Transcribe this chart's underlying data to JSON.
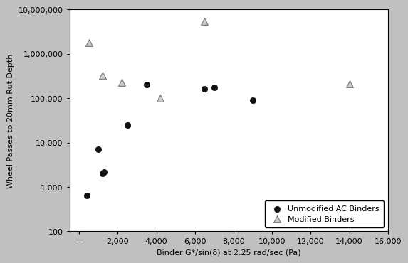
{
  "unmodified_x": [
    400,
    1000,
    1200,
    1300,
    2500,
    3500,
    6500,
    7000,
    9000
  ],
  "unmodified_y": [
    650,
    7000,
    2000,
    2200,
    25000,
    200000,
    160000,
    175000,
    90000
  ],
  "modified_x": [
    500,
    1200,
    2200,
    4200,
    6500,
    14000
  ],
  "modified_y": [
    1800000,
    330000,
    230000,
    100000,
    5500000,
    210000
  ],
  "xlabel": "Binder G*/sin(δ) at 2.25 rad/sec (Pa)",
  "ylabel": "Wheel Passes to 20mm Rut Depth",
  "xlim": [
    -500,
    16000
  ],
  "ylim": [
    100,
    10000000
  ],
  "xticks": [
    0,
    2000,
    4000,
    6000,
    8000,
    10000,
    12000,
    14000,
    16000
  ],
  "xtick_labels": [
    "-",
    "2,000",
    "4,000",
    "6,000",
    "8,000",
    "10,000",
    "12,000",
    "14,000",
    "16,000"
  ],
  "yticks": [
    100,
    1000,
    10000,
    100000,
    1000000,
    10000000
  ],
  "ytick_labels": [
    "100",
    "1,000",
    "10,000",
    "100,000",
    "1,000,000",
    "10,000,000"
  ],
  "legend_unmodified": "Unmodified AC Binders",
  "legend_modified": "Modified Binders",
  "background_color": "#c0c0c0",
  "plot_bg_color": "#ffffff",
  "marker_unmodified": "o",
  "marker_modified": "^",
  "marker_color_unmodified": "#111111",
  "marker_facecolor_modified": "#cccccc",
  "marker_edgecolor_modified": "#777777",
  "marker_size_unmodified": 6,
  "marker_size_modified": 7,
  "tick_fontsize": 8,
  "label_fontsize": 8,
  "legend_fontsize": 8
}
